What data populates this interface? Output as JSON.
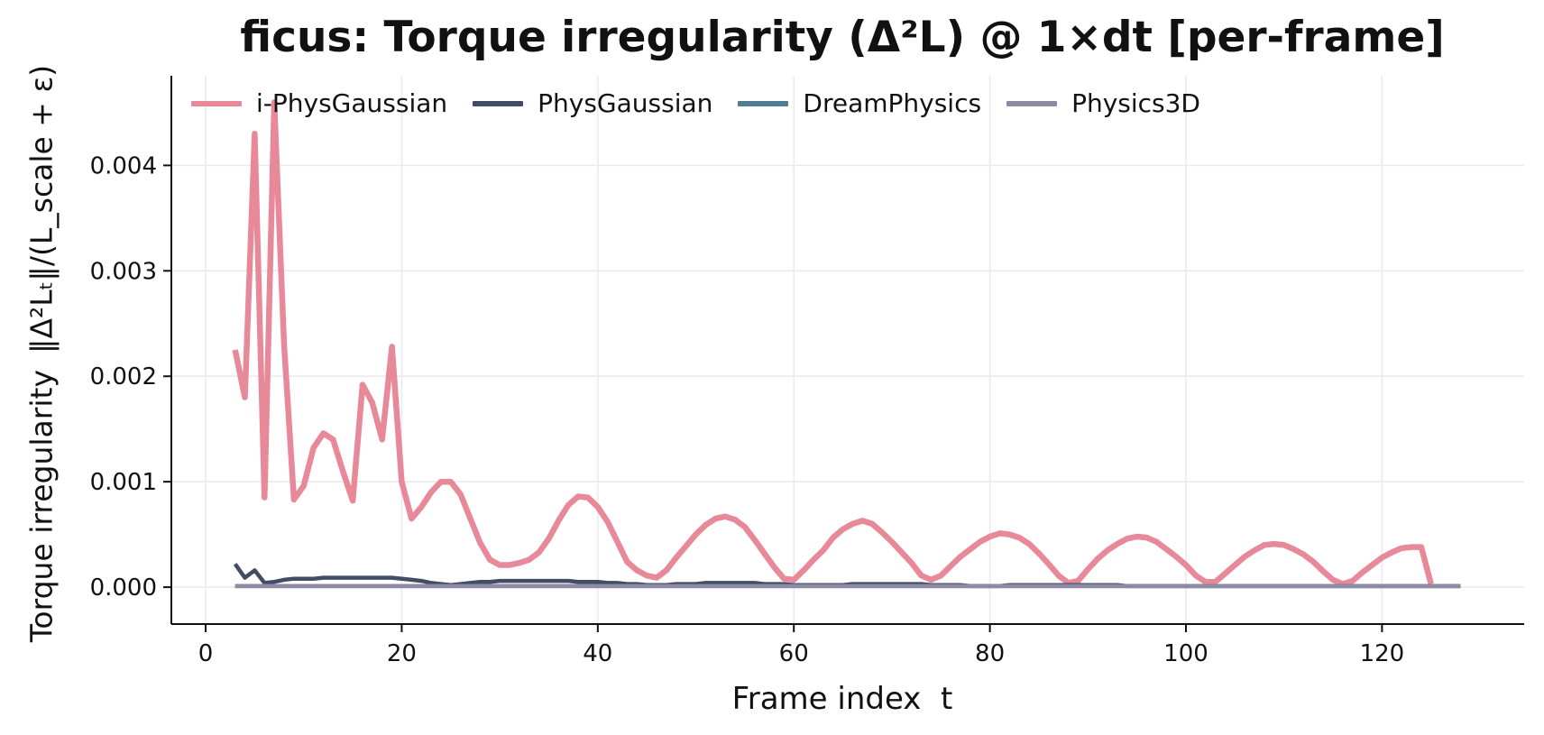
{
  "chart_data": {
    "type": "line",
    "title": "ficus: Torque irregularity (Δ²L) @ 1×dt [per-frame]",
    "xlabel": "Frame index  t",
    "ylabel": {
      "prefix": "Torque irregularity",
      "formula": "‖Δ²Lₜ‖/(L_scale + ε)"
    },
    "xlim": [
      -3.5,
      134.5
    ],
    "ylim": [
      -0.00035,
      0.00485
    ],
    "xticks": [
      0,
      20,
      40,
      60,
      80,
      100,
      120
    ],
    "yticks": [
      0.0,
      0.001,
      0.002,
      0.003,
      0.004
    ],
    "ytick_labels": [
      "0.000",
      "0.001",
      "0.002",
      "0.003",
      "0.004"
    ],
    "grid": true,
    "legend_position": "top-left",
    "series": [
      {
        "name": "i-PhysGaussian",
        "color": "#e8899a",
        "x": [
          3,
          4,
          5,
          6,
          7,
          8,
          9,
          10,
          11,
          12,
          13,
          14,
          15,
          16,
          17,
          18,
          19,
          20,
          21,
          22,
          23,
          24,
          25,
          26,
          27,
          28,
          29,
          30,
          31,
          32,
          33,
          34,
          35,
          36,
          37,
          38,
          39,
          40,
          41,
          42,
          43,
          44,
          45,
          46,
          47,
          48,
          49,
          50,
          51,
          52,
          53,
          54,
          55,
          56,
          57,
          58,
          59,
          60,
          61,
          62,
          63,
          64,
          65,
          66,
          67,
          68,
          69,
          70,
          71,
          72,
          73,
          74,
          75,
          76,
          77,
          78,
          79,
          80,
          81,
          82,
          83,
          84,
          85,
          86,
          87,
          88,
          89,
          90,
          91,
          92,
          93,
          94,
          95,
          96,
          97,
          98,
          99,
          100,
          101,
          102,
          103,
          104,
          105,
          106,
          107,
          108,
          109,
          110,
          111,
          112,
          113,
          114,
          115,
          116,
          117,
          118,
          119,
          120,
          121,
          122,
          123,
          124,
          125
        ],
        "y": [
          0.00225,
          0.0018,
          0.0043,
          0.00085,
          0.0046,
          0.0023,
          0.00083,
          0.00096,
          0.00132,
          0.00146,
          0.0014,
          0.0011,
          0.00082,
          0.00192,
          0.00175,
          0.0014,
          0.00228,
          0.001,
          0.00065,
          0.00076,
          0.0009,
          0.001,
          0.001,
          0.00088,
          0.00065,
          0.00042,
          0.00026,
          0.00021,
          0.00021,
          0.00023,
          0.00026,
          0.00033,
          0.00046,
          0.00063,
          0.00078,
          0.00086,
          0.00085,
          0.00076,
          0.00062,
          0.00043,
          0.00024,
          0.00016,
          0.00011,
          9e-05,
          0.00016,
          0.00028,
          0.00039,
          0.0005,
          0.00059,
          0.00065,
          0.00067,
          0.00064,
          0.00057,
          0.00045,
          0.00032,
          0.00019,
          8e-05,
          7e-05,
          0.00016,
          0.00026,
          0.00035,
          0.00047,
          0.00055,
          0.0006,
          0.00063,
          0.0006,
          0.00052,
          0.00043,
          0.00033,
          0.00023,
          0.00011,
          7e-05,
          0.00011,
          0.0002,
          0.00029,
          0.00036,
          0.00043,
          0.00048,
          0.00051,
          0.0005,
          0.00047,
          0.00041,
          0.00032,
          0.00022,
          0.00011,
          4e-05,
          6e-05,
          0.00017,
          0.00027,
          0.00035,
          0.00041,
          0.00046,
          0.00048,
          0.00047,
          0.00043,
          0.00036,
          0.00029,
          0.00021,
          0.00011,
          5e-05,
          5e-05,
          0.00013,
          0.00021,
          0.00029,
          0.00035,
          0.0004,
          0.00041,
          0.0004,
          0.00036,
          0.00031,
          0.00024,
          0.00015,
          7e-05,
          3e-05,
          6e-05,
          0.00014,
          0.00021,
          0.00028,
          0.00033,
          0.00037,
          0.00038,
          0.00038,
          3e-05
        ]
      },
      {
        "name": "PhysGaussian",
        "color": "#414c65",
        "x": [
          3,
          4,
          5,
          6,
          7,
          8,
          9,
          10,
          11,
          12,
          13,
          14,
          15,
          16,
          17,
          18,
          19,
          20,
          21,
          22,
          23,
          24,
          25,
          26,
          27,
          28,
          29,
          30,
          31,
          32,
          33,
          34,
          35,
          36,
          37,
          38,
          39,
          40,
          41,
          42,
          43,
          44,
          45,
          46,
          47,
          48,
          49,
          50,
          51,
          52,
          53,
          54,
          55,
          56,
          57,
          58,
          59,
          60,
          61,
          62,
          63,
          64,
          65,
          66,
          67,
          68,
          69,
          70,
          71,
          72,
          73,
          74,
          75,
          76,
          77,
          78,
          79,
          80,
          81,
          82,
          83,
          84,
          85,
          86,
          87,
          88,
          89,
          90,
          91,
          92,
          93,
          94,
          95,
          96,
          97,
          98,
          99,
          100,
          101,
          102,
          103,
          104,
          105,
          106,
          107,
          108,
          109,
          110,
          111,
          112,
          113,
          114,
          115,
          116,
          117,
          118,
          119,
          120,
          121,
          122,
          123,
          124,
          125,
          126,
          127,
          128
        ],
        "y": [
          0.00022,
          9e-05,
          0.00016,
          4e-05,
          5e-05,
          7e-05,
          8e-05,
          8e-05,
          8e-05,
          9e-05,
          9e-05,
          9e-05,
          9e-05,
          9e-05,
          9e-05,
          9e-05,
          9e-05,
          8e-05,
          7e-05,
          6e-05,
          4e-05,
          3e-05,
          2e-05,
          3e-05,
          4e-05,
          5e-05,
          5e-05,
          6e-05,
          6e-05,
          6e-05,
          6e-05,
          6e-05,
          6e-05,
          6e-05,
          6e-05,
          5e-05,
          5e-05,
          5e-05,
          4e-05,
          4e-05,
          3e-05,
          3e-05,
          2e-05,
          2e-05,
          2e-05,
          3e-05,
          3e-05,
          3e-05,
          4e-05,
          4e-05,
          4e-05,
          4e-05,
          4e-05,
          4e-05,
          3e-05,
          3e-05,
          3e-05,
          2e-05,
          2e-05,
          2e-05,
          2e-05,
          2e-05,
          2e-05,
          3e-05,
          3e-05,
          3e-05,
          3e-05,
          3e-05,
          3e-05,
          3e-05,
          3e-05,
          2e-05,
          2e-05,
          2e-05,
          2e-05,
          1e-05,
          1e-05,
          1e-05,
          1e-05,
          2e-05,
          2e-05,
          2e-05,
          2e-05,
          2e-05,
          2e-05,
          2e-05,
          2e-05,
          2e-05,
          2e-05,
          2e-05,
          2e-05,
          1e-05,
          1e-05,
          1e-05,
          1e-05,
          1e-05,
          1e-05,
          1e-05,
          1e-05,
          1e-05,
          1e-05,
          1e-05,
          1e-05,
          1e-05,
          1e-05,
          1e-05,
          1e-05,
          1e-05,
          1e-05,
          1e-05,
          1e-05,
          1e-05,
          1e-05,
          1e-05,
          1e-05,
          1e-05,
          1e-05,
          1e-05,
          1e-05,
          1e-05,
          1e-05,
          1e-05,
          1e-05,
          1e-05,
          1e-05,
          1e-05
        ]
      },
      {
        "name": "DreamPhysics",
        "color": "#4f7c90",
        "x": [
          3,
          128
        ],
        "y": [
          1e-05,
          1e-05
        ]
      },
      {
        "name": "Physics3D",
        "color": "#8f8aa3",
        "x": [
          3,
          128
        ],
        "y": [
          1e-05,
          1e-05
        ]
      }
    ]
  }
}
